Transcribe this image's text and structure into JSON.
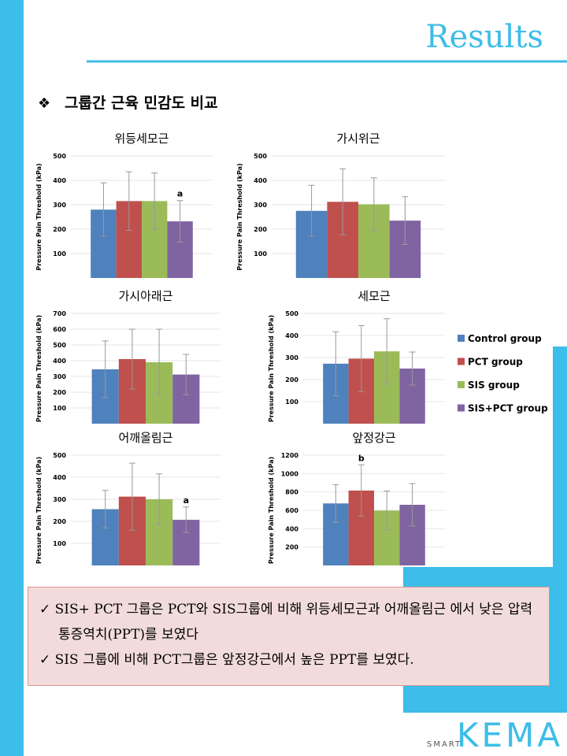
{
  "header": {
    "title": "Results",
    "subtitle": "그룹간 근육 민감도 비교"
  },
  "groups": [
    {
      "name": "Control group",
      "color": "#4f81bd"
    },
    {
      "name": "PCT group",
      "color": "#c0504d"
    },
    {
      "name": "SIS group",
      "color": "#9bbb59"
    },
    {
      "name": "SIS+PCT group",
      "color": "#8064a2"
    }
  ],
  "chart_data": [
    {
      "type": "bar",
      "title": "위등세모근",
      "y_label": "Pressure Pain Threshold (kPa)",
      "values": [
        280,
        315,
        315,
        232
      ],
      "errors": [
        110,
        120,
        115,
        85
      ],
      "ylim": [
        0,
        500
      ],
      "yticks": [
        100,
        200,
        300,
        400,
        500
      ],
      "annotations": [
        {
          "text": "a",
          "category": 3
        }
      ]
    },
    {
      "type": "bar",
      "title": "가시위근",
      "y_label": "Pressure Pain Threshold (kPa)",
      "values": [
        275,
        312,
        302,
        235
      ],
      "errors": [
        105,
        135,
        108,
        98
      ],
      "ylim": [
        0,
        500
      ],
      "yticks": [
        100,
        200,
        300,
        400,
        500
      ],
      "annotations": []
    },
    {
      "type": "bar",
      "title": "가시아래근",
      "y_label": "Pressure Pain Threshold (kPa)",
      "values": [
        345,
        410,
        390,
        312
      ],
      "errors": [
        180,
        190,
        210,
        128
      ],
      "ylim": [
        0,
        700
      ],
      "yticks": [
        100,
        200,
        300,
        400,
        500,
        600,
        700
      ],
      "annotations": []
    },
    {
      "type": "bar",
      "title": "세모근",
      "y_label": "Pressure Pain Threshold (kPa)",
      "values": [
        272,
        295,
        328,
        250
      ],
      "errors": [
        145,
        150,
        148,
        75
      ],
      "ylim": [
        0,
        500
      ],
      "yticks": [
        100,
        200,
        300,
        400,
        500
      ],
      "annotations": []
    },
    {
      "type": "bar",
      "title": "어깨올림근",
      "y_label": "Pressure Pain Threshold (kPa)",
      "values": [
        255,
        312,
        300,
        207
      ],
      "errors": [
        85,
        152,
        115,
        58
      ],
      "ylim": [
        0,
        500
      ],
      "yticks": [
        100,
        200,
        300,
        400,
        500
      ],
      "annotations": [
        {
          "text": "a",
          "category": 3
        }
      ]
    },
    {
      "type": "bar",
      "title": "앞정강근",
      "y_label": "Pressure Pain Threshold (kPa)",
      "values": [
        675,
        815,
        597,
        660
      ],
      "errors": [
        205,
        280,
        212,
        230
      ],
      "ylim": [
        0,
        1200
      ],
      "yticks": [
        200,
        400,
        600,
        800,
        1000,
        1200
      ],
      "annotations": [
        {
          "text": "b",
          "category": 1
        }
      ]
    }
  ],
  "notes": [
    "SIS+ PCT 그룹은 PCT와 SIS그룹에 비해 위등세모근과 어깨올림근 에서 낮은 압력통증역치(PPT)를 보였다",
    "SIS 그룹에 비해 PCT그룹은 앞정강근에서 높은 PPT를 보였다."
  ],
  "logo": {
    "prefix": "SMART",
    "name": "KEMA"
  }
}
